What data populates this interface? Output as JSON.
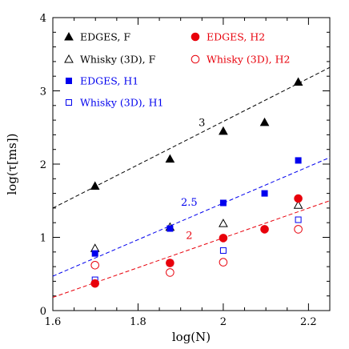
{
  "chart_data": {
    "type": "scatter",
    "xlabel": "log(N)",
    "ylabel": "log(τ[ms])",
    "xlim": [
      1.6,
      2.25
    ],
    "ylim": [
      0,
      4
    ],
    "x_ticks": [
      1.6,
      1.8,
      2,
      2.2
    ],
    "x_tick_labels": [
      "1.6",
      "1.8",
      "2",
      "2.2"
    ],
    "y_ticks": [
      0,
      1,
      2,
      3,
      4
    ],
    "y_tick_labels": [
      "0",
      "1",
      "2",
      "3",
      "4"
    ],
    "grid": false,
    "legend": {
      "placement": "top",
      "entries": [
        {
          "label": "EDGES, F",
          "marker": "filled-triangle",
          "color": "#000000"
        },
        {
          "label": "EDGES, H2",
          "marker": "filled-circle",
          "color": "#e8000b"
        },
        {
          "label": "Whisky (3D), F",
          "marker": "open-triangle",
          "color": "#000000"
        },
        {
          "label": "Whisky (3D), H2",
          "marker": "open-circle",
          "color": "#e8000b"
        },
        {
          "label": "EDGES, H1",
          "marker": "filled-square",
          "color": "#0000ee"
        },
        {
          "label": "Whisky (3D), H1",
          "marker": "open-square",
          "color": "#0000ee"
        }
      ]
    },
    "series": [
      {
        "name": "EDGES, F",
        "marker": "filled-triangle",
        "color": "#000000",
        "x": [
          1.699,
          1.875,
          2.0,
          2.097,
          2.176
        ],
        "y": [
          1.7,
          2.07,
          2.45,
          2.57,
          3.12
        ]
      },
      {
        "name": "Whisky (3D), F",
        "marker": "open-triangle",
        "color": "#000000",
        "x": [
          1.699,
          1.875,
          2.0,
          2.176
        ],
        "y": [
          0.85,
          1.14,
          1.19,
          1.44
        ]
      },
      {
        "name": "EDGES, H1",
        "marker": "filled-square",
        "color": "#0000ee",
        "x": [
          1.699,
          1.875,
          2.0,
          2.097,
          2.176
        ],
        "y": [
          0.78,
          1.12,
          1.47,
          1.6,
          2.05
        ]
      },
      {
        "name": "Whisky (3D), H1",
        "marker": "open-square",
        "color": "#0000ee",
        "x": [
          1.699,
          1.875,
          2.0,
          2.176
        ],
        "y": [
          0.42,
          0.65,
          0.82,
          1.24
        ]
      },
      {
        "name": "EDGES, H2",
        "marker": "filled-circle",
        "color": "#e8000b",
        "x": [
          1.699,
          1.875,
          2.0,
          2.097,
          2.176
        ],
        "y": [
          0.37,
          0.65,
          0.99,
          1.11,
          1.53
        ]
      },
      {
        "name": "Whisky (3D), H2",
        "marker": "open-circle",
        "color": "#e8000b",
        "x": [
          1.699,
          1.875,
          2.0,
          2.176
        ],
        "y": [
          0.62,
          0.52,
          0.66,
          1.11
        ]
      }
    ],
    "fit_lines": [
      {
        "slope_label": "3",
        "color": "#000000",
        "points": [
          [
            1.6,
            1.4
          ],
          [
            2.25,
            3.32
          ]
        ],
        "label_at": [
          1.95,
          2.52
        ]
      },
      {
        "slope_label": "2.5",
        "color": "#0000ee",
        "points": [
          [
            1.6,
            0.47
          ],
          [
            2.25,
            2.09
          ]
        ],
        "label_at": [
          1.92,
          1.43
        ]
      },
      {
        "slope_label": "2",
        "color": "#e8000b",
        "points": [
          [
            1.6,
            0.18
          ],
          [
            2.25,
            1.5
          ]
        ],
        "label_at": [
          1.92,
          0.98
        ]
      }
    ]
  }
}
